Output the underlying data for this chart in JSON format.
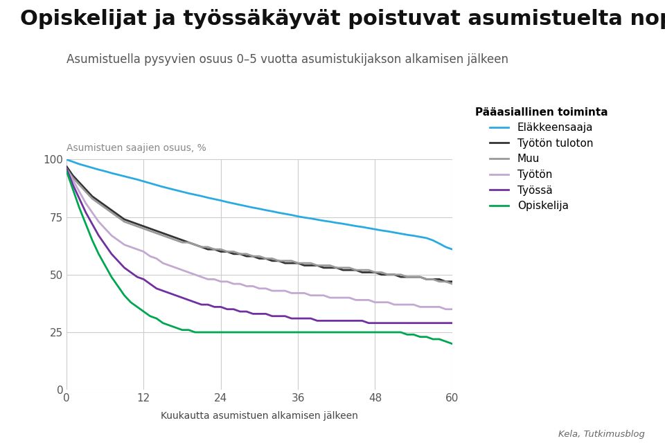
{
  "title": "Opiskelijat ja työssäkäyvät poistuvat asumistuelta nopeimmin",
  "subtitle": "Asumistuella pysyvien osuus 0–5 vuotta asumistukijakson alkamisen jälkeen",
  "ylabel": "Asumistuen saajien osuus, %",
  "xlabel": "Kuukautta asumistuen alkamisen jälkeen",
  "legend_title": "Pääasiallinen toiminta",
  "source": "Kela, Tutkimusblog",
  "series": [
    {
      "label": "Eläkkeensaaja",
      "color": "#29ABE2",
      "linewidth": 2.0,
      "x": [
        0,
        1,
        2,
        3,
        4,
        5,
        6,
        7,
        8,
        9,
        10,
        11,
        12,
        13,
        14,
        15,
        16,
        17,
        18,
        19,
        20,
        21,
        22,
        23,
        24,
        25,
        26,
        27,
        28,
        29,
        30,
        31,
        32,
        33,
        34,
        35,
        36,
        37,
        38,
        39,
        40,
        41,
        42,
        43,
        44,
        45,
        46,
        47,
        48,
        49,
        50,
        51,
        52,
        53,
        54,
        55,
        56,
        57,
        58,
        59,
        60
      ],
      "y": [
        100,
        99.0,
        98.0,
        97.2,
        96.4,
        95.6,
        94.9,
        94.1,
        93.4,
        92.7,
        92.0,
        91.3,
        90.5,
        89.7,
        88.9,
        88.1,
        87.4,
        86.7,
        86.0,
        85.3,
        84.7,
        84.1,
        83.4,
        82.8,
        82.2,
        81.5,
        80.9,
        80.3,
        79.7,
        79.1,
        78.6,
        78.0,
        77.5,
        76.9,
        76.4,
        75.9,
        75.3,
        74.8,
        74.4,
        73.9,
        73.4,
        73.0,
        72.5,
        72.1,
        71.6,
        71.1,
        70.7,
        70.2,
        69.7,
        69.2,
        68.8,
        68.3,
        67.8,
        67.3,
        66.9,
        66.4,
        65.9,
        64.9,
        63.5,
        62.0,
        61.0
      ]
    },
    {
      "label": "Työtön tuloton",
      "color": "#333333",
      "linewidth": 2.0,
      "x": [
        0,
        1,
        2,
        3,
        4,
        5,
        6,
        7,
        8,
        9,
        10,
        11,
        12,
        13,
        14,
        15,
        16,
        17,
        18,
        19,
        20,
        21,
        22,
        23,
        24,
        25,
        26,
        27,
        28,
        29,
        30,
        31,
        32,
        33,
        34,
        35,
        36,
        37,
        38,
        39,
        40,
        41,
        42,
        43,
        44,
        45,
        46,
        47,
        48,
        49,
        50,
        51,
        52,
        53,
        54,
        55,
        56,
        57,
        58,
        59,
        60
      ],
      "y": [
        97,
        93,
        90,
        87,
        84,
        82,
        80,
        78,
        76,
        74,
        73,
        72,
        71,
        70,
        69,
        68,
        67,
        66,
        65,
        64,
        63,
        62,
        61,
        61,
        60,
        60,
        59,
        59,
        58,
        58,
        57,
        57,
        56,
        56,
        55,
        55,
        55,
        54,
        54,
        54,
        53,
        53,
        53,
        52,
        52,
        52,
        51,
        51,
        51,
        50,
        50,
        50,
        49,
        49,
        49,
        49,
        48,
        48,
        48,
        47,
        47
      ]
    },
    {
      "label": "Muu",
      "color": "#999999",
      "linewidth": 2.0,
      "x": [
        0,
        1,
        2,
        3,
        4,
        5,
        6,
        7,
        8,
        9,
        10,
        11,
        12,
        13,
        14,
        15,
        16,
        17,
        18,
        19,
        20,
        21,
        22,
        23,
        24,
        25,
        26,
        27,
        28,
        29,
        30,
        31,
        32,
        33,
        34,
        35,
        36,
        37,
        38,
        39,
        40,
        41,
        42,
        43,
        44,
        45,
        46,
        47,
        48,
        49,
        50,
        51,
        52,
        53,
        54,
        55,
        56,
        57,
        58,
        59,
        60
      ],
      "y": [
        96,
        92,
        89,
        86,
        83,
        81,
        79,
        77,
        75,
        73,
        72,
        71,
        70,
        69,
        68,
        67,
        66,
        65,
        64,
        64,
        63,
        62,
        62,
        61,
        61,
        60,
        60,
        59,
        59,
        58,
        58,
        57,
        57,
        56,
        56,
        56,
        55,
        55,
        55,
        54,
        54,
        54,
        53,
        53,
        53,
        52,
        52,
        52,
        51,
        51,
        50,
        50,
        50,
        49,
        49,
        49,
        48,
        48,
        47,
        47,
        46
      ]
    },
    {
      "label": "Työtön",
      "color": "#C3A8D1",
      "linewidth": 2.0,
      "x": [
        0,
        1,
        2,
        3,
        4,
        5,
        6,
        7,
        8,
        9,
        10,
        11,
        12,
        13,
        14,
        15,
        16,
        17,
        18,
        19,
        20,
        21,
        22,
        23,
        24,
        25,
        26,
        27,
        28,
        29,
        30,
        31,
        32,
        33,
        34,
        35,
        36,
        37,
        38,
        39,
        40,
        41,
        42,
        43,
        44,
        45,
        46,
        47,
        48,
        49,
        50,
        51,
        52,
        53,
        54,
        55,
        56,
        57,
        58,
        59,
        60
      ],
      "y": [
        96,
        91,
        86,
        81,
        77,
        73,
        70,
        67,
        65,
        63,
        62,
        61,
        60,
        58,
        57,
        55,
        54,
        53,
        52,
        51,
        50,
        49,
        48,
        48,
        47,
        47,
        46,
        46,
        45,
        45,
        44,
        44,
        43,
        43,
        43,
        42,
        42,
        42,
        41,
        41,
        41,
        40,
        40,
        40,
        40,
        39,
        39,
        39,
        38,
        38,
        38,
        37,
        37,
        37,
        37,
        36,
        36,
        36,
        36,
        35,
        35
      ]
    },
    {
      "label": "Työssä",
      "color": "#7030A0",
      "linewidth": 2.0,
      "x": [
        0,
        1,
        2,
        3,
        4,
        5,
        6,
        7,
        8,
        9,
        10,
        11,
        12,
        13,
        14,
        15,
        16,
        17,
        18,
        19,
        20,
        21,
        22,
        23,
        24,
        25,
        26,
        27,
        28,
        29,
        30,
        31,
        32,
        33,
        34,
        35,
        36,
        37,
        38,
        39,
        40,
        41,
        42,
        43,
        44,
        45,
        46,
        47,
        48,
        49,
        50,
        51,
        52,
        53,
        54,
        55,
        56,
        57,
        58,
        59,
        60
      ],
      "y": [
        96,
        89,
        83,
        77,
        72,
        67,
        63,
        59,
        56,
        53,
        51,
        49,
        48,
        46,
        44,
        43,
        42,
        41,
        40,
        39,
        38,
        37,
        37,
        36,
        36,
        35,
        35,
        34,
        34,
        33,
        33,
        33,
        32,
        32,
        32,
        31,
        31,
        31,
        31,
        30,
        30,
        30,
        30,
        30,
        30,
        30,
        30,
        29,
        29,
        29,
        29,
        29,
        29,
        29,
        29,
        29,
        29,
        29,
        29,
        29,
        29
      ]
    },
    {
      "label": "Opiskelija",
      "color": "#00A650",
      "linewidth": 2.0,
      "x": [
        0,
        1,
        2,
        3,
        4,
        5,
        6,
        7,
        8,
        9,
        10,
        11,
        12,
        13,
        14,
        15,
        16,
        17,
        18,
        19,
        20,
        21,
        22,
        23,
        24,
        25,
        26,
        27,
        28,
        29,
        30,
        31,
        32,
        33,
        34,
        35,
        36,
        37,
        38,
        39,
        40,
        41,
        42,
        43,
        44,
        45,
        46,
        47,
        48,
        49,
        50,
        51,
        52,
        53,
        54,
        55,
        56,
        57,
        58,
        59,
        60
      ],
      "y": [
        95,
        87,
        79,
        72,
        65,
        59,
        54,
        49,
        45,
        41,
        38,
        36,
        34,
        32,
        31,
        29,
        28,
        27,
        26,
        26,
        25,
        25,
        25,
        25,
        25,
        25,
        25,
        25,
        25,
        25,
        25,
        25,
        25,
        25,
        25,
        25,
        25,
        25,
        25,
        25,
        25,
        25,
        25,
        25,
        25,
        25,
        25,
        25,
        25,
        25,
        25,
        25,
        25,
        24,
        24,
        23,
        23,
        22,
        22,
        21,
        20
      ]
    }
  ],
  "xlim": [
    0,
    60
  ],
  "ylim": [
    0,
    100
  ],
  "xticks": [
    0,
    12,
    24,
    36,
    48,
    60
  ],
  "yticks": [
    0,
    25,
    50,
    75,
    100
  ],
  "grid_color": "#cccccc",
  "background_color": "#ffffff",
  "title_fontsize": 22,
  "subtitle_fontsize": 12,
  "axis_label_fontsize": 10,
  "tick_fontsize": 11,
  "legend_fontsize": 11
}
